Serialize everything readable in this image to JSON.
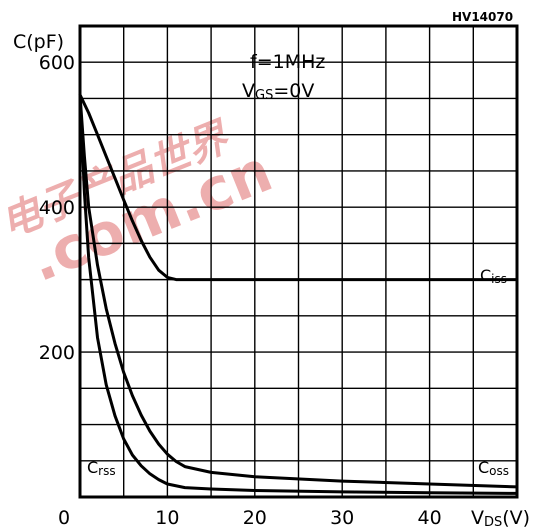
{
  "chart_data": {
    "type": "line",
    "reference_code": "HV14070",
    "ylabel": "C(pF)",
    "xlabel": {
      "main": "V",
      "sub": "DS",
      "unit": "(V)"
    },
    "conditions": {
      "line1": "f=1MHz",
      "line2": {
        "main": "V",
        "sub": "GS",
        "rest": "=0V"
      }
    },
    "xlim": [
      0,
      50
    ],
    "ylim": [
      0,
      650
    ],
    "xticks": [
      0,
      10,
      20,
      30,
      40
    ],
    "xtick_labels": [
      "0",
      "10",
      "20",
      "30",
      "40"
    ],
    "yticks": [
      200,
      400,
      600
    ],
    "ytick_labels": [
      "200",
      "400",
      "600"
    ],
    "grid": true,
    "watermark": "电子产品世界 .com.cn",
    "watermark_color": "#e06c6c",
    "series": [
      {
        "name": {
          "main": "C",
          "sub": "iss"
        },
        "x": [
          0,
          1,
          2,
          3,
          4,
          5,
          6,
          7,
          8,
          9,
          10,
          11,
          12,
          15,
          20,
          30,
          40,
          50
        ],
        "y": [
          555,
          530,
          500,
          470,
          440,
          410,
          381,
          354,
          331,
          313,
          303,
          300,
          300,
          300,
          300,
          300,
          300,
          300
        ]
      },
      {
        "name": {
          "main": "C",
          "sub": "oss"
        },
        "x": [
          0,
          0.5,
          1,
          2,
          3,
          4,
          5,
          6,
          7,
          8,
          9,
          10,
          11,
          12,
          15,
          20,
          30,
          40,
          50
        ],
        "y": [
          555,
          470,
          400,
          320,
          260,
          212,
          172,
          140,
          113,
          91,
          73,
          59,
          49,
          42,
          34,
          28,
          22,
          18,
          14
        ]
      },
      {
        "name": {
          "main": "C",
          "sub": "rss"
        },
        "x": [
          0,
          0.5,
          1,
          2,
          3,
          4,
          5,
          6,
          7,
          8,
          9,
          10,
          12,
          15,
          20,
          30,
          40,
          50
        ],
        "y": [
          555,
          420,
          330,
          220,
          155,
          112,
          80,
          58,
          43,
          32,
          24,
          18,
          13,
          11,
          9,
          7,
          6,
          5
        ]
      }
    ]
  }
}
